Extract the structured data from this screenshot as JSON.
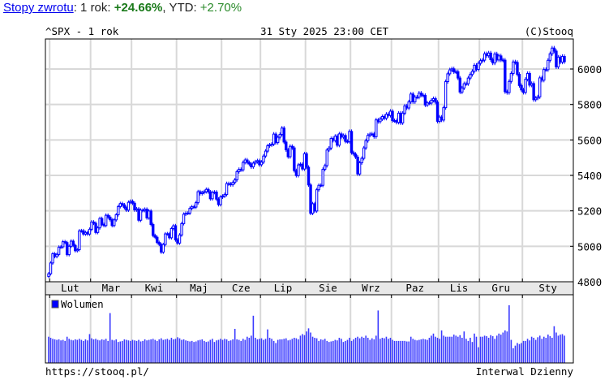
{
  "header": {
    "link_label": "Stopy zwrotu",
    "sep1": ": 1 rok: ",
    "one_year_return": "+24.66%",
    "sep2": ", YTD: ",
    "ytd_return": "+2.70%"
  },
  "colors": {
    "candle": "#0000ff",
    "volume": "#3a3aff",
    "grid": "#d8d8d8",
    "band": "#e8e8e8",
    "positive": "#1a7a1a"
  },
  "chart_data": {
    "type": "candlestick",
    "title_left": "^SPX - 1 rok",
    "title_center": "31 Sty 2025 23:00 CET",
    "title_right": "(C)Stooq",
    "footer_left": "https://stooq.pl/",
    "footer_right": "Interwal Dzienny",
    "volume_legend": "Wolumen",
    "ylim": [
      4800,
      6170
    ],
    "yticks": [
      4800,
      5000,
      5200,
      5400,
      5600,
      5800,
      6000
    ],
    "grid": true,
    "months": [
      {
        "label": "Lut",
        "start_index": 1
      },
      {
        "label": "Mar",
        "start_index": 21
      },
      {
        "label": "Kwi",
        "start_index": 41
      },
      {
        "label": "Maj",
        "start_index": 63
      },
      {
        "label": "Cze",
        "start_index": 85
      },
      {
        "label": "Lip",
        "start_index": 104
      },
      {
        "label": "Sie",
        "start_index": 126
      },
      {
        "label": "Wrz",
        "start_index": 148
      },
      {
        "label": "Paz",
        "start_index": 168
      },
      {
        "label": "Lis",
        "start_index": 191
      },
      {
        "label": "Gru",
        "start_index": 211
      },
      {
        "label": "Sty",
        "start_index": 232
      }
    ],
    "close": [
      4845,
      4906,
      4958,
      4942,
      4954,
      4995,
      4997,
      5026,
      5021,
      4953,
      5000,
      5029,
      5005,
      4975,
      4981,
      5087,
      5088,
      5069,
      5078,
      5069,
      5096,
      5137,
      5130,
      5078,
      5104,
      5157,
      5123,
      5117,
      5175,
      5165,
      5150,
      5117,
      5149,
      5178,
      5224,
      5241,
      5234,
      5218,
      5204,
      5248,
      5254,
      5243,
      5205,
      5211,
      5147,
      5204,
      5202,
      5209,
      5160,
      5199,
      5123,
      5061,
      5051,
      5022,
      5011,
      4967,
      5010,
      5070,
      5071,
      5048,
      5100,
      5116,
      5036,
      5018,
      5064,
      5128,
      5181,
      5187,
      5187,
      5214,
      5223,
      5221,
      5246,
      5308,
      5297,
      5303,
      5308,
      5321,
      5307,
      5268,
      5304,
      5306,
      5266,
      5235,
      5278,
      5283,
      5292,
      5354,
      5352,
      5347,
      5360,
      5375,
      5421,
      5434,
      5431,
      5473,
      5487,
      5473,
      5464,
      5448,
      5469,
      5477,
      5483,
      5460,
      5475,
      5509,
      5537,
      5567,
      5572,
      5576,
      5633,
      5585,
      5615,
      5631,
      5667,
      5588,
      5544,
      5505,
      5564,
      5555,
      5427,
      5399,
      5459,
      5463,
      5436,
      5522,
      5446,
      5346,
      5186,
      5240,
      5199,
      5319,
      5344,
      5344,
      5434,
      5455,
      5543,
      5554,
      5608,
      5597,
      5621,
      5570,
      5634,
      5616,
      5625,
      5592,
      5591,
      5648,
      5528,
      5520,
      5503,
      5408,
      5471,
      5496,
      5555,
      5596,
      5626,
      5633,
      5634,
      5618,
      5713,
      5703,
      5718,
      5732,
      5722,
      5745,
      5738,
      5762,
      5709,
      5709,
      5699,
      5751,
      5696,
      5751,
      5792,
      5780,
      5815,
      5859,
      5815,
      5842,
      5841,
      5864,
      5853,
      5851,
      5797,
      5809,
      5808,
      5823,
      5833,
      5813,
      5705,
      5729,
      5712,
      5782,
      5929,
      5973,
      5995,
      6001,
      5984,
      5985,
      5949,
      5870,
      5893,
      5917,
      5917,
      5949,
      5969,
      5987,
      6021,
      5998,
      6032,
      6047,
      6050,
      6086,
      6075,
      6090,
      6053,
      6034,
      6085,
      6051,
      6074,
      6051,
      6050,
      5872,
      5867,
      5930,
      5975,
      6040,
      6037,
      5970,
      5907,
      5882,
      5868,
      5942,
      5975,
      5909,
      5918,
      5827,
      5836,
      5843,
      5950,
      5937,
      5997,
      5996,
      6049,
      6086,
      6118,
      6101,
      6012,
      6067,
      6039,
      6071,
      6041
    ],
    "volume": [
      50,
      48,
      46,
      45,
      44,
      45,
      43,
      44,
      42,
      50,
      46,
      44,
      43,
      45,
      44,
      46,
      44,
      42,
      45,
      43,
      55,
      47,
      45,
      46,
      44,
      43,
      45,
      44,
      46,
      42,
      95,
      44,
      43,
      45,
      40,
      41,
      42,
      45,
      44,
      43,
      42,
      44,
      43,
      42,
      44,
      41,
      42,
      45,
      43,
      44,
      45,
      46,
      44,
      42,
      45,
      47,
      44,
      45,
      46,
      44,
      48,
      45,
      46,
      49,
      47,
      44,
      45,
      43,
      42,
      41,
      42,
      40,
      41,
      43,
      44,
      45,
      42,
      40,
      41,
      44,
      46,
      40,
      43,
      44,
      46,
      44,
      46,
      45,
      42,
      43,
      45,
      65,
      45,
      44,
      42,
      46,
      44,
      50,
      48,
      52,
      90,
      48,
      45,
      46,
      47,
      44,
      46,
      64,
      48,
      46,
      42,
      38,
      44,
      45,
      45,
      46,
      47,
      43,
      44,
      46,
      48,
      47,
      45,
      52,
      55,
      53,
      60,
      66,
      58,
      50,
      48,
      47,
      42,
      45,
      44,
      46,
      42,
      40,
      41,
      42,
      44,
      43,
      48,
      46,
      40,
      42,
      44,
      48,
      42,
      45,
      48,
      50,
      47,
      50,
      48,
      52,
      48,
      44,
      47,
      45,
      52,
      100,
      46,
      48,
      47,
      50,
      46,
      48,
      44,
      42,
      42,
      42,
      42,
      42,
      42,
      41,
      41,
      50,
      46,
      44,
      43,
      44,
      45,
      46,
      45,
      44,
      48,
      52,
      56,
      50,
      48,
      46,
      62,
      52,
      50,
      50,
      50,
      50,
      54,
      52,
      50,
      53,
      48,
      60,
      46,
      42,
      48,
      40,
      56,
      50,
      30,
      50,
      50,
      52,
      51,
      48,
      53,
      51,
      46,
      52,
      56,
      54,
      58,
      62,
      60,
      110,
      44,
      28,
      33,
      38,
      36,
      38,
      42,
      42,
      46,
      43,
      50,
      48,
      44,
      49,
      52,
      46,
      50,
      48,
      54,
      51,
      48,
      70,
      58,
      52,
      54,
      55,
      52
    ]
  }
}
